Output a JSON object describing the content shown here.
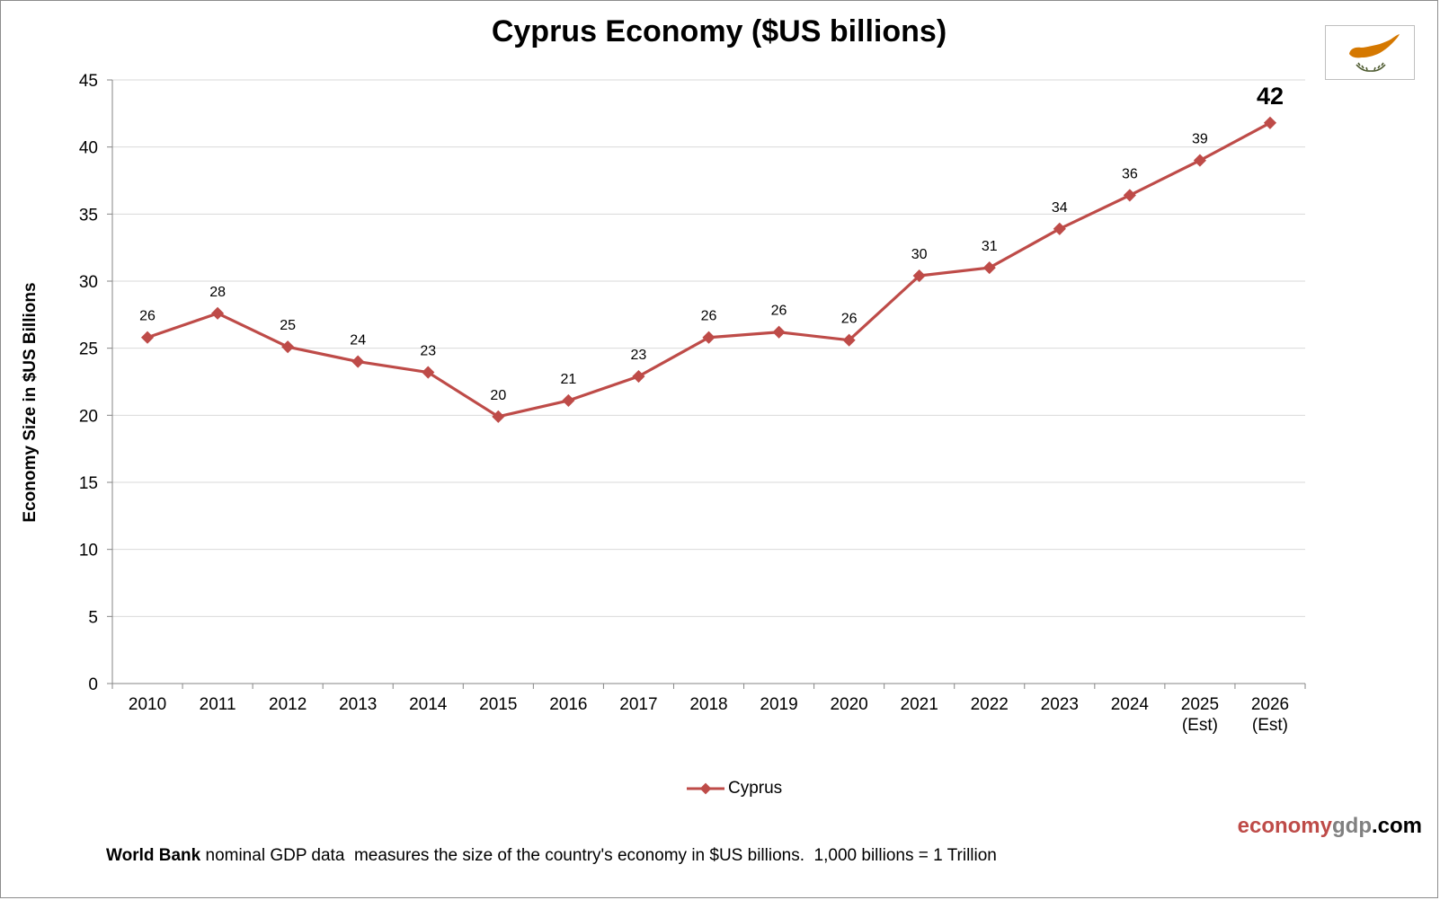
{
  "chart_data": {
    "type": "line",
    "title": "Cyprus Economy ($US billions)",
    "xlabel": "",
    "ylabel": "Economy Size in $US Billions",
    "categories": [
      "2010",
      "2011",
      "2012",
      "2013",
      "2014",
      "2015",
      "2016",
      "2017",
      "2018",
      "2019",
      "2020",
      "2021",
      "2022",
      "2023",
      "2024",
      "2025 (Est)",
      "2026 (Est)"
    ],
    "category_lines": [
      [
        "2010"
      ],
      [
        "2011"
      ],
      [
        "2012"
      ],
      [
        "2013"
      ],
      [
        "2014"
      ],
      [
        "2015"
      ],
      [
        "2016"
      ],
      [
        "2017"
      ],
      [
        "2018"
      ],
      [
        "2019"
      ],
      [
        "2020"
      ],
      [
        "2021"
      ],
      [
        "2022"
      ],
      [
        "2023"
      ],
      [
        "2024"
      ],
      [
        "2025",
        "(Est)"
      ],
      [
        "2026",
        "(Est)"
      ]
    ],
    "series": [
      {
        "name": "Cyprus",
        "color": "#be4b48",
        "values": [
          25.8,
          27.6,
          25.1,
          24.0,
          23.2,
          19.9,
          21.1,
          22.9,
          25.8,
          26.2,
          25.6,
          30.4,
          31.0,
          33.9,
          36.4,
          39.0,
          41.8
        ],
        "labels": [
          "26",
          "28",
          "25",
          "24",
          "23",
          "20",
          "21",
          "23",
          "26",
          "26",
          "26",
          "30",
          "31",
          "34",
          "36",
          "39",
          "42"
        ]
      }
    ],
    "ylim": [
      0,
      45
    ],
    "yticks": [
      0,
      5,
      10,
      15,
      20,
      25,
      30,
      35,
      40,
      45
    ],
    "grid": true,
    "legend_position": "bottom",
    "highlight_last_label": true
  },
  "branding": {
    "part1": "economy",
    "part2": "gdp",
    "part3": ".com"
  },
  "footnote": {
    "bold": "World Bank",
    "text": " nominal GDP data  measures the size of the country's economy in $US billions.  1,000 billions = 1 Trillion"
  },
  "flag": {
    "name": "cyprus-flag-icon",
    "map_color": "#d57800",
    "branch_color": "#4e5b31"
  }
}
